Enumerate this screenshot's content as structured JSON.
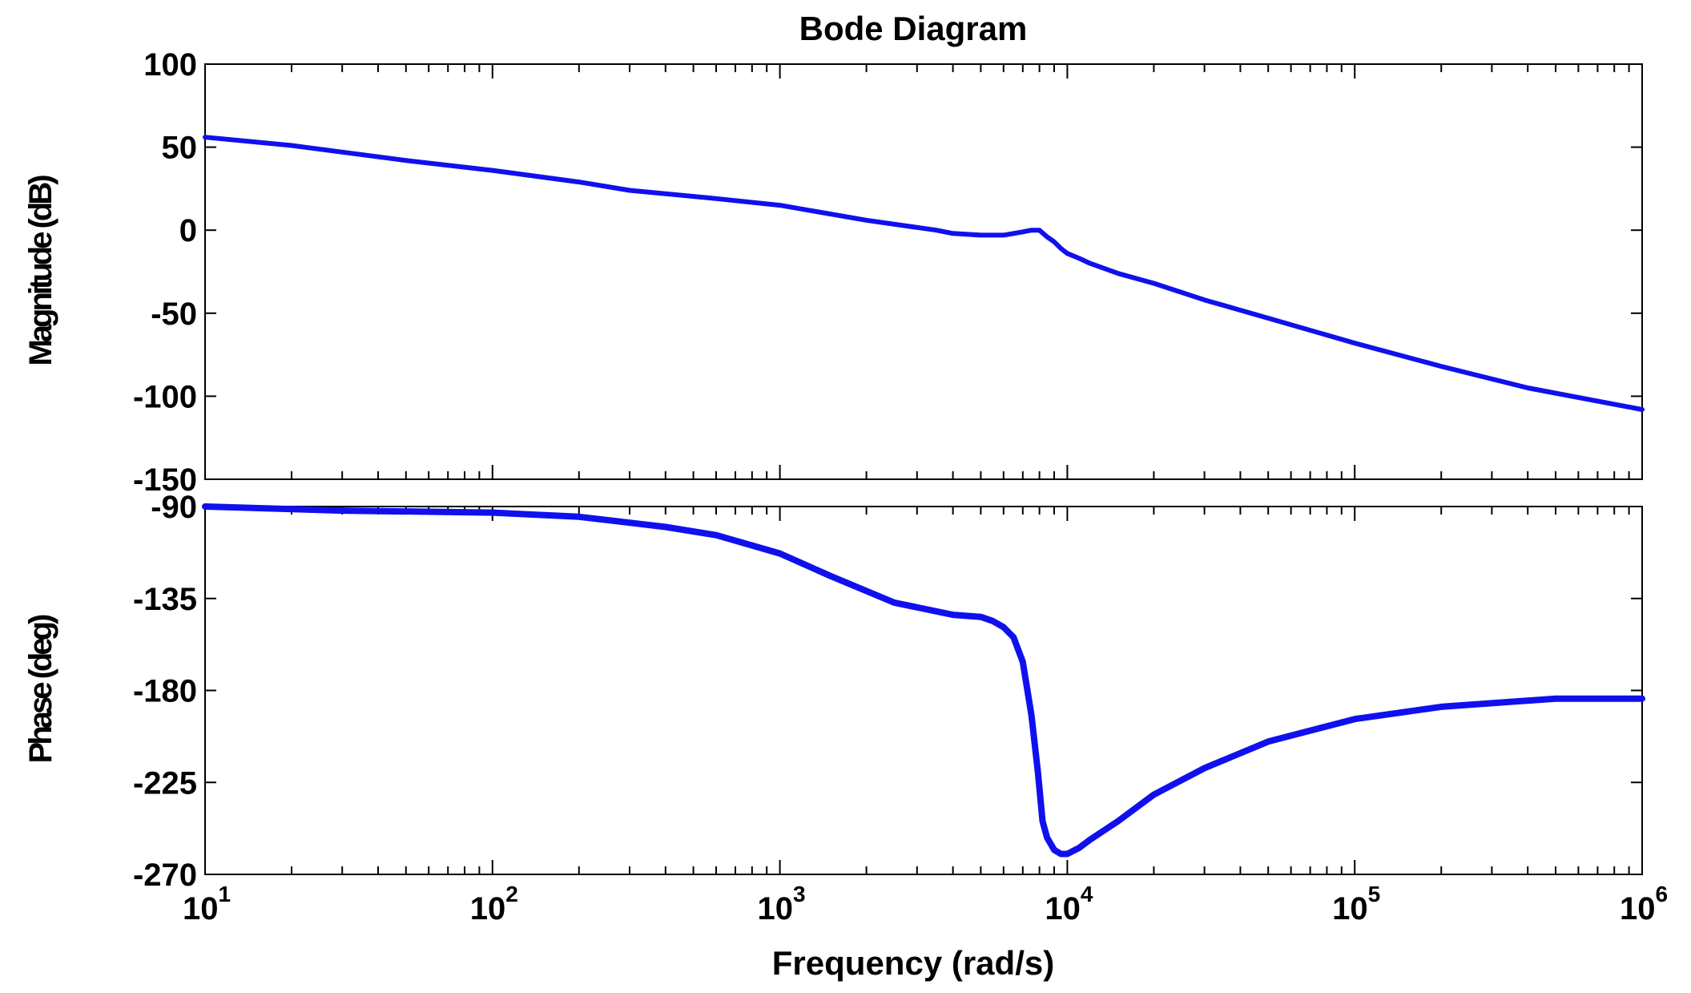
{
  "chart_data": {
    "type": "line",
    "title": "Bode Diagram",
    "xlabel": "Frequency  (rad/s)",
    "x_scale": "log",
    "xlim": [
      10,
      1000000
    ],
    "x_ticks": [
      {
        "base": "10",
        "exp": "1"
      },
      {
        "base": "10",
        "exp": "2"
      },
      {
        "base": "10",
        "exp": "3"
      },
      {
        "base": "10",
        "exp": "4"
      },
      {
        "base": "10",
        "exp": "5"
      },
      {
        "base": "10",
        "exp": "6"
      }
    ],
    "grid": false,
    "line_color": "#1010ee",
    "panels": [
      {
        "name": "magnitude",
        "ylabel": "Magnitude (dB)",
        "ylim": [
          -150,
          100
        ],
        "yticks": [
          "100",
          "50",
          "0",
          "-50",
          "-100",
          "-150"
        ],
        "ytick_values": [
          100,
          50,
          0,
          -50,
          -100,
          -150
        ],
        "series": [
          {
            "x": [
              10,
              20,
              50,
              100,
              200,
              300,
              600,
              1000,
              2000,
              3500,
              4000,
              5000,
              6000,
              6500,
              7000,
              7500,
              8000,
              8500,
              9000,
              9500,
              10000,
              11000,
              12000,
              15000,
              20000,
              30000,
              50000,
              100000,
              200000,
              400000,
              1000000
            ],
            "y": [
              56,
              51,
              42,
              36,
              29,
              24,
              19,
              15,
              6,
              0,
              -2,
              -3,
              -3,
              -2,
              -1,
              0,
              0,
              -4,
              -7,
              -11,
              -14,
              -17,
              -20,
              -26,
              -32,
              -42,
              -53,
              -68,
              -82,
              -95,
              -108
            ]
          }
        ]
      },
      {
        "name": "phase",
        "ylabel": "Phase (deg)",
        "ylim": [
          -270,
          -90
        ],
        "yticks": [
          "-90",
          "-135",
          "-180",
          "-225",
          "-270"
        ],
        "ytick_values": [
          -90,
          -135,
          -180,
          -225,
          -270
        ],
        "series": [
          {
            "x": [
              10,
              30,
              100,
              200,
              400,
              600,
              1000,
              1500,
              2500,
              4000,
              5000,
              5500,
              6000,
              6500,
              7000,
              7500,
              7900,
              8200,
              8500,
              9000,
              9500,
              10000,
              11000,
              12000,
              15000,
              20000,
              30000,
              50000,
              100000,
              200000,
              500000,
              1000000
            ],
            "y": [
              -90,
              -92,
              -93,
              -95,
              -100,
              -104,
              -113,
              -124,
              -137,
              -143,
              -144,
              -146,
              -149,
              -154,
              -166,
              -192,
              -220,
              -244,
              -252,
              -258,
              -260,
              -260,
              -257,
              -253,
              -244,
              -231,
              -218,
              -205,
              -194,
              -188,
              -184,
              -184
            ]
          }
        ]
      }
    ]
  }
}
